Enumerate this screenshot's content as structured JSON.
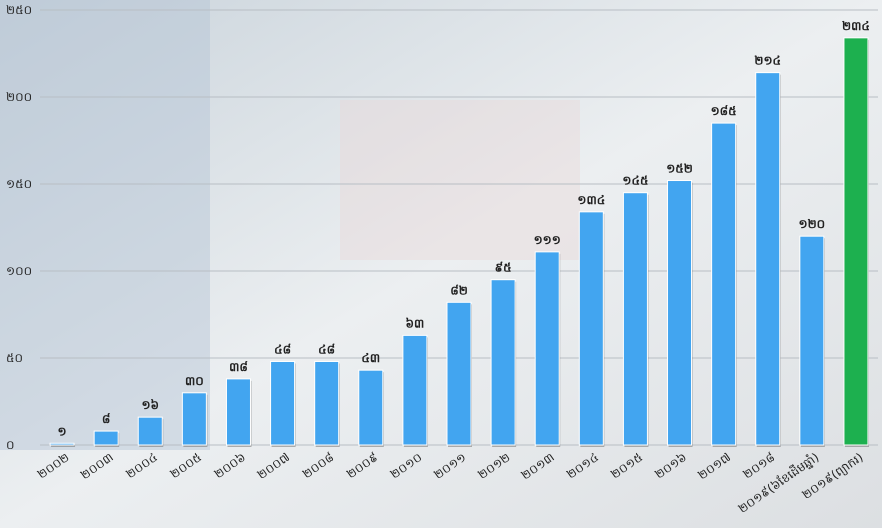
{
  "chart_data": {
    "type": "bar",
    "categories": [
      "២០០២",
      "២០០៣",
      "២០០៤",
      "២០០៥",
      "២០០៦",
      "២០០៧",
      "២០០៨",
      "២០០៩",
      "២០១០",
      "២០១១",
      "២០១២",
      "២០១៣",
      "២០១៤",
      "២០១៥",
      "២០១៦",
      "២០១៧",
      "២០១៨",
      "២០១៩(៦ខែដើមឆ្នាំ)",
      "២០១៩(ព្យាករ)"
    ],
    "values": [
      1,
      8,
      16,
      30,
      38,
      48,
      48,
      43,
      63,
      82,
      95,
      111,
      134,
      145,
      152,
      185,
      214,
      120,
      234
    ],
    "value_labels": [
      "១",
      "៨",
      "១៦",
      "៣០",
      "៣៨",
      "៤៨",
      "៤៨",
      "៤៣",
      "៦៣",
      "៨២",
      "៩៥",
      "១១១",
      "១៣៤",
      "១៤៥",
      "១៥២",
      "១៨៥",
      "២១៤",
      "១២០",
      "២៣៤"
    ],
    "colors": [
      "#42a5f0",
      "#42a5f0",
      "#42a5f0",
      "#42a5f0",
      "#42a5f0",
      "#42a5f0",
      "#42a5f0",
      "#42a5f0",
      "#42a5f0",
      "#42a5f0",
      "#42a5f0",
      "#42a5f0",
      "#42a5f0",
      "#42a5f0",
      "#42a5f0",
      "#42a5f0",
      "#42a5f0",
      "#42a5f0",
      "#1db04f"
    ],
    "ylim": [
      0,
      250
    ],
    "yticks": [
      {
        "value": 0,
        "label": "០"
      },
      {
        "value": 50,
        "label": "៥០"
      },
      {
        "value": 100,
        "label": "១០០"
      },
      {
        "value": 150,
        "label": "១៥០"
      },
      {
        "value": 200,
        "label": "២០០"
      },
      {
        "value": 250,
        "label": "២៥០"
      }
    ],
    "grid": true
  }
}
